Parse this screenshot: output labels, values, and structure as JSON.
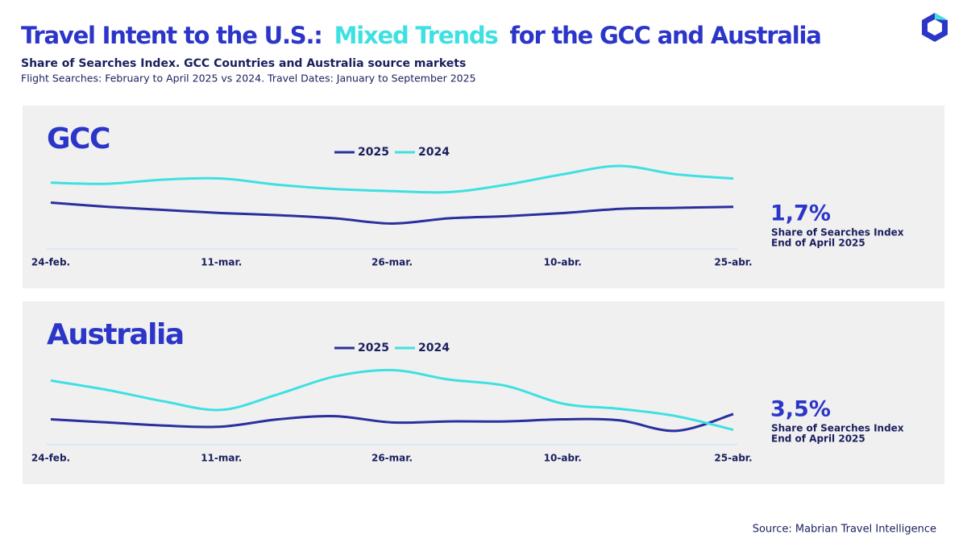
{
  "header": {
    "title_parts": [
      "Travel Intent to the U.S.:",
      "Mixed Trends",
      "for the GCC and Australia"
    ],
    "subtitle": "Share of Searches Index. GCC Countries and Australia source markets",
    "note": "Flight Searches: February to April 2025 vs 2024. Travel Dates: January to September 2025"
  },
  "chart_data": [
    {
      "type": "line",
      "title": "GCC",
      "categories": [
        "24-feb.",
        null,
        null,
        "11-mar.",
        null,
        null,
        "26-mar.",
        null,
        null,
        "10-abr.",
        null,
        null,
        "25-abr."
      ],
      "series": [
        {
          "name": "2025",
          "color": "#2a2f9e",
          "values": [
            45,
            41,
            38,
            35,
            33,
            30,
            25,
            30,
            32,
            35,
            39,
            40,
            41
          ]
        },
        {
          "name": "2024",
          "color": "#3fe0e2",
          "values": [
            64,
            63,
            67,
            68,
            62,
            58,
            56,
            55,
            62,
            72,
            80,
            72,
            68
          ]
        }
      ],
      "ylim": [
        0,
        100
      ],
      "kpi": "1,7%",
      "kpi_caption": [
        "Share of Searches Index",
        "End of April 2025"
      ]
    },
    {
      "type": "line",
      "title": "Australia",
      "categories": [
        "24-feb.",
        null,
        null,
        "11-mar.",
        null,
        null,
        "26-mar.",
        null,
        null,
        "10-abr.",
        null,
        null,
        "25-abr."
      ],
      "series": [
        {
          "name": "2025",
          "color": "#2a2f9e",
          "values": [
            25,
            22,
            19,
            18,
            25,
            28,
            22,
            23,
            23,
            25,
            24,
            14,
            30
          ]
        },
        {
          "name": "2024",
          "color": "#3fe0e2",
          "values": [
            62,
            53,
            42,
            34,
            49,
            66,
            72,
            63,
            57,
            40,
            35,
            28,
            15
          ]
        }
      ],
      "ylim": [
        0,
        100
      ],
      "kpi": "3,5%",
      "kpi_caption": [
        "Share of Searches Index",
        "End of April 2025"
      ]
    }
  ],
  "source": "Source: Mabrian Travel Intelligence"
}
